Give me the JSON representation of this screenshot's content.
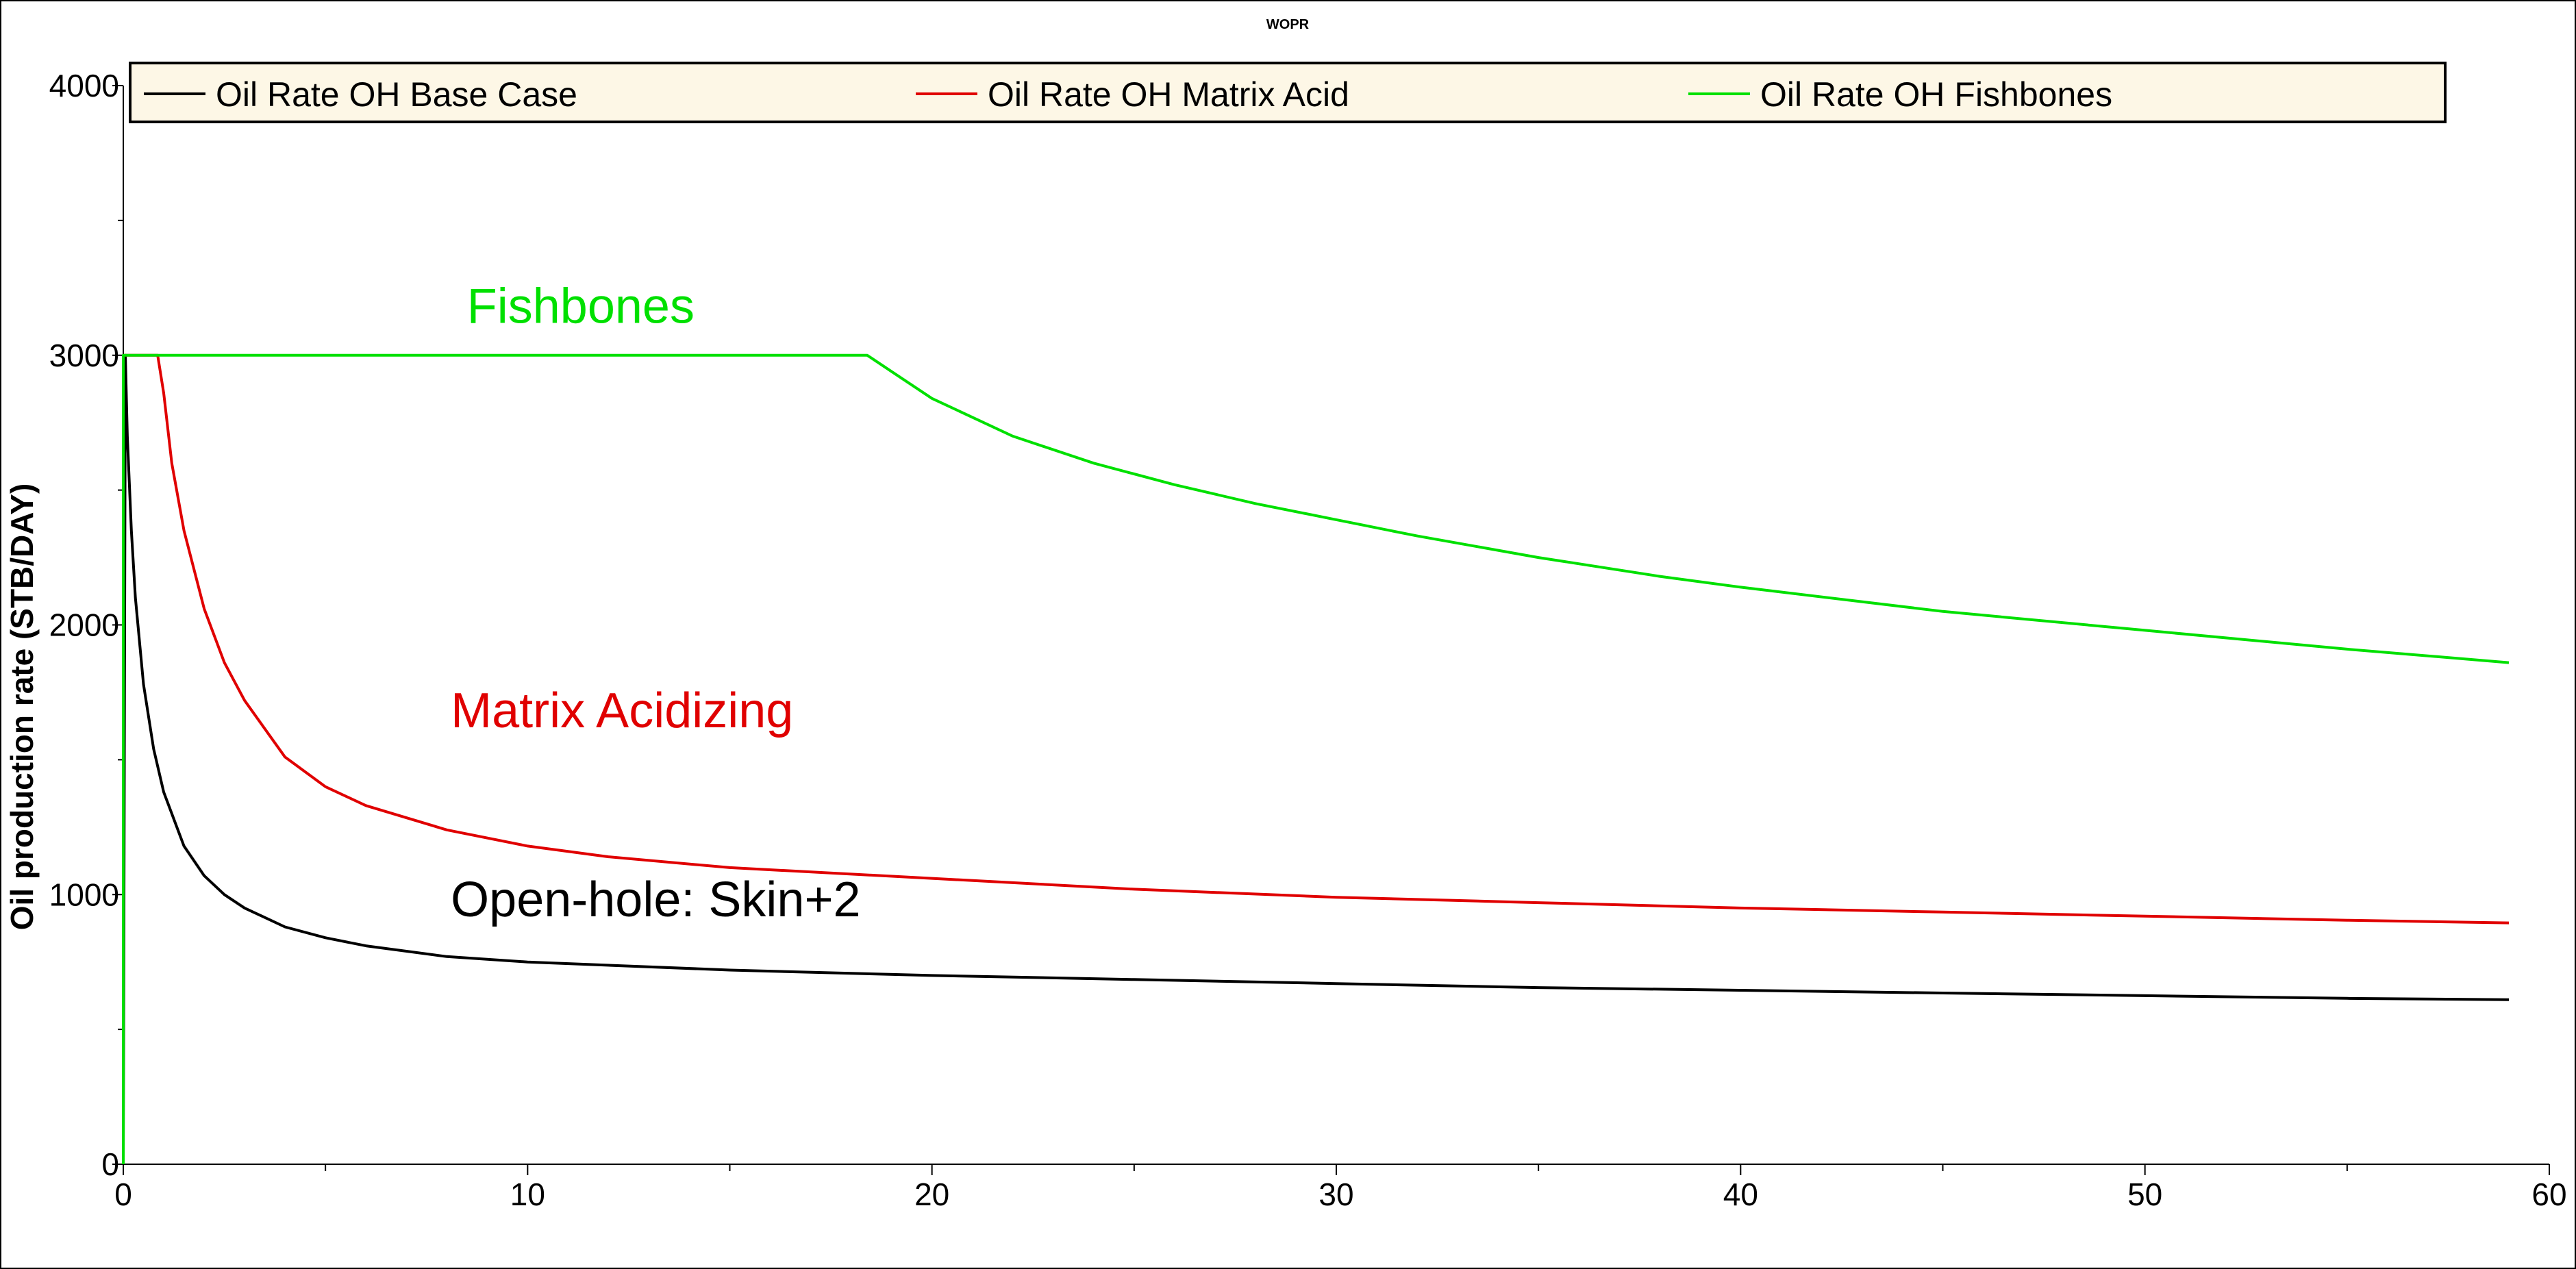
{
  "chart_data": {
    "type": "line",
    "title": "WOPR",
    "xlabel": "",
    "ylabel": "Oil production rate (STB/DAY)",
    "xlim": [
      0,
      60
    ],
    "ylim": [
      0,
      4000
    ],
    "x_ticks": [
      0,
      10,
      20,
      30,
      40,
      50,
      60
    ],
    "y_ticks": [
      0,
      1000,
      2000,
      3000,
      4000
    ],
    "legend_position": "top",
    "series": [
      {
        "name": "Oil Rate OH Base Case",
        "color": "#000000",
        "x": [
          0,
          0.05,
          0.1,
          0.2,
          0.3,
          0.5,
          0.75,
          1,
          1.5,
          2,
          2.5,
          3,
          4,
          5,
          6,
          8,
          10,
          15,
          20,
          25,
          30,
          35,
          40,
          45,
          50,
          55,
          59
        ],
        "values": [
          0,
          3000,
          2700,
          2350,
          2100,
          1780,
          1540,
          1380,
          1180,
          1070,
          1000,
          950,
          880,
          840,
          810,
          770,
          750,
          720,
          700,
          685,
          670,
          655,
          645,
          635,
          625,
          615,
          610
        ]
      },
      {
        "name": "Oil Rate OH Matrix Acid",
        "color": "#e00000",
        "x": [
          0,
          0.85,
          1,
          1.2,
          1.5,
          2,
          2.5,
          3,
          4,
          5,
          6,
          8,
          10,
          12,
          15,
          20,
          25,
          30,
          35,
          40,
          45,
          50,
          55,
          59
        ],
        "values": [
          3000,
          3000,
          2860,
          2600,
          2350,
          2060,
          1860,
          1720,
          1510,
          1400,
          1330,
          1240,
          1180,
          1140,
          1100,
          1060,
          1020,
          990,
          970,
          950,
          935,
          920,
          905,
          895
        ]
      },
      {
        "name": "Oil Rate OH Fishbones",
        "color": "#00e000",
        "x": [
          0,
          0,
          18.4,
          19,
          20,
          22,
          24,
          26,
          28,
          30,
          32,
          35,
          38,
          40,
          45,
          50,
          55,
          59
        ],
        "values": [
          0,
          3000,
          3000,
          2940,
          2840,
          2700,
          2600,
          2520,
          2450,
          2390,
          2330,
          2250,
          2180,
          2140,
          2050,
          1980,
          1910,
          1860
        ]
      }
    ],
    "annotations": [
      {
        "text": "Fishbones",
        "color": "#00e000",
        "x": 8.5,
        "y": 3120
      },
      {
        "text": "Matrix Acidizing",
        "color": "#e00000",
        "x": 8.1,
        "y": 1620
      },
      {
        "text": "Open-hole: Skin+2",
        "color": "#000000",
        "x": 8.1,
        "y": 920
      }
    ]
  }
}
